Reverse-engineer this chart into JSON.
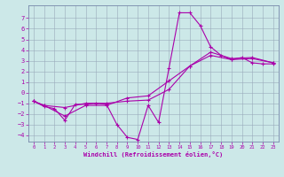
{
  "xlabel": "Windchill (Refroidissement éolien,°C)",
  "bg_color": "#cce8e8",
  "line_color": "#aa00aa",
  "grid_color": "#99aabb",
  "spine_color": "#7788aa",
  "tick_color": "#aa00aa",
  "xlim": [
    -0.5,
    23.5
  ],
  "ylim": [
    -4.6,
    8.2
  ],
  "yticks": [
    -4,
    -3,
    -2,
    -1,
    0,
    1,
    2,
    3,
    4,
    5,
    6,
    7
  ],
  "xticks": [
    0,
    1,
    2,
    3,
    4,
    5,
    6,
    7,
    8,
    9,
    10,
    11,
    12,
    13,
    14,
    15,
    16,
    17,
    18,
    19,
    20,
    21,
    22,
    23
  ],
  "line1_x": [
    0,
    1,
    2,
    3,
    4,
    5,
    6,
    7,
    8,
    9,
    10,
    11,
    12,
    13,
    14,
    15,
    16,
    17,
    18,
    19,
    20,
    21,
    22,
    23
  ],
  "line1_y": [
    -0.8,
    -1.3,
    -1.5,
    -2.6,
    -1.1,
    -1.1,
    -1.0,
    -1.1,
    -3.0,
    -4.2,
    -4.4,
    -1.2,
    -2.8,
    2.3,
    7.5,
    7.5,
    6.3,
    4.3,
    3.5,
    3.1,
    3.3,
    2.8,
    2.7,
    2.7
  ],
  "line2_x": [
    0,
    1,
    3,
    5,
    7,
    9,
    11,
    13,
    15,
    17,
    19,
    21,
    23
  ],
  "line2_y": [
    -0.8,
    -1.2,
    -1.4,
    -1.0,
    -1.0,
    -0.8,
    -0.7,
    0.3,
    2.5,
    3.5,
    3.1,
    3.2,
    2.8
  ],
  "line3_x": [
    0,
    1,
    3,
    5,
    7,
    9,
    11,
    13,
    15,
    17,
    19,
    21,
    23
  ],
  "line3_y": [
    -0.8,
    -1.2,
    -2.2,
    -1.2,
    -1.2,
    -0.5,
    -0.3,
    1.1,
    2.5,
    3.8,
    3.2,
    3.3,
    2.8
  ]
}
